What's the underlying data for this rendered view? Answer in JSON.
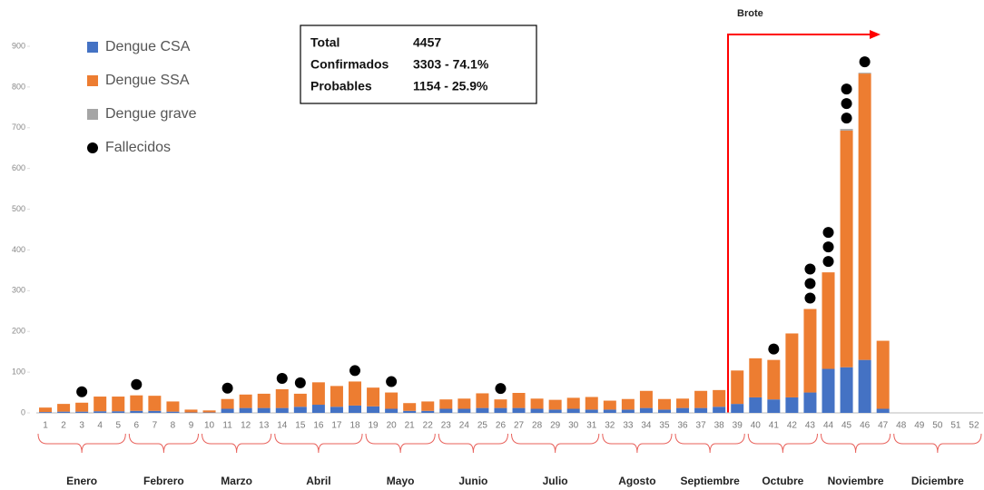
{
  "chart_data": {
    "type": "bar",
    "categories": [
      "1",
      "2",
      "3",
      "4",
      "5",
      "6",
      "7",
      "8",
      "9",
      "10",
      "11",
      "12",
      "13",
      "14",
      "15",
      "16",
      "17",
      "18",
      "19",
      "20",
      "21",
      "22",
      "23",
      "24",
      "25",
      "26",
      "27",
      "28",
      "29",
      "30",
      "31",
      "32",
      "33",
      "34",
      "35",
      "36",
      "37",
      "38",
      "39",
      "40",
      "41",
      "42",
      "43",
      "44",
      "45",
      "46",
      "47",
      "48",
      "49",
      "50",
      "51",
      "52"
    ],
    "series": [
      {
        "name": "Dengue CSA",
        "color": "#4472c4",
        "values": [
          2,
          3,
          3,
          4,
          4,
          5,
          5,
          3,
          1,
          1,
          10,
          12,
          12,
          12,
          15,
          20,
          15,
          18,
          16,
          10,
          5,
          5,
          10,
          10,
          12,
          12,
          12,
          10,
          8,
          10,
          8,
          8,
          8,
          12,
          8,
          12,
          12,
          15,
          22,
          38,
          33,
          38,
          50,
          108,
          112,
          130,
          10,
          0,
          0,
          0,
          0,
          0
        ]
      },
      {
        "name": "Dengue SSA",
        "color": "#ed7d31",
        "values": [
          11,
          19,
          22,
          36,
          36,
          38,
          37,
          25,
          7,
          5,
          24,
          33,
          35,
          46,
          32,
          55,
          51,
          59,
          46,
          40,
          19,
          23,
          23,
          25,
          36,
          21,
          37,
          25,
          24,
          27,
          31,
          22,
          26,
          42,
          26,
          23,
          42,
          41,
          82,
          96,
          97,
          157,
          205,
          237,
          581,
          703,
          167,
          0,
          0,
          0,
          0,
          0
        ]
      },
      {
        "name": "Dengue grave",
        "color": "#a5a5a5",
        "values": [
          0,
          0,
          0,
          0,
          0,
          0,
          0,
          0,
          0,
          0,
          0,
          0,
          0,
          0,
          0,
          0,
          0,
          0,
          0,
          0,
          0,
          0,
          0,
          0,
          0,
          0,
          0,
          0,
          0,
          0,
          0,
          0,
          0,
          0,
          0,
          0,
          0,
          0,
          0,
          0,
          0,
          0,
          0,
          0,
          4,
          2,
          0,
          0,
          0,
          0,
          0,
          0
        ]
      }
    ],
    "deaths": {
      "name": "Fallecidos",
      "color": "#000000",
      "values": [
        0,
        0,
        1,
        0,
        0,
        1,
        0,
        0,
        0,
        0,
        1,
        0,
        0,
        1,
        1,
        0,
        0,
        1,
        0,
        1,
        0,
        0,
        0,
        0,
        0,
        1,
        0,
        0,
        0,
        0,
        0,
        0,
        0,
        0,
        0,
        0,
        0,
        0,
        0,
        0,
        1,
        0,
        3,
        3,
        3,
        1,
        0,
        0,
        0,
        0,
        0,
        0
      ]
    },
    "ylim": [
      0,
      900
    ],
    "yticks": [
      0,
      100,
      200,
      300,
      400,
      500,
      600,
      700,
      800,
      900
    ],
    "months": [
      {
        "label": "Enero",
        "weeks": [
          1,
          5
        ]
      },
      {
        "label": "Febrero",
        "weeks": [
          6,
          9
        ]
      },
      {
        "label": "Marzo",
        "weeks": [
          10,
          13
        ]
      },
      {
        "label": "Abril",
        "weeks": [
          14,
          18
        ]
      },
      {
        "label": "Mayo",
        "weeks": [
          19,
          22
        ]
      },
      {
        "label": "Junio",
        "weeks": [
          23,
          26
        ]
      },
      {
        "label": "Julio",
        "weeks": [
          27,
          31
        ]
      },
      {
        "label": "Agosto",
        "weeks": [
          32,
          35
        ]
      },
      {
        "label": "Septiembre",
        "weeks": [
          36,
          39
        ]
      },
      {
        "label": "Octubre",
        "weeks": [
          40,
          43
        ]
      },
      {
        "label": "Noviembre",
        "weeks": [
          44,
          47
        ]
      },
      {
        "label": "Diciembre",
        "weeks": [
          48,
          52
        ]
      }
    ],
    "summary": [
      [
        "Total",
        "4457"
      ],
      [
        "Confirmados",
        "3303 - 74.1%"
      ],
      [
        "Probables",
        "1154 - 25.9%"
      ]
    ],
    "annotation": "Brote"
  }
}
